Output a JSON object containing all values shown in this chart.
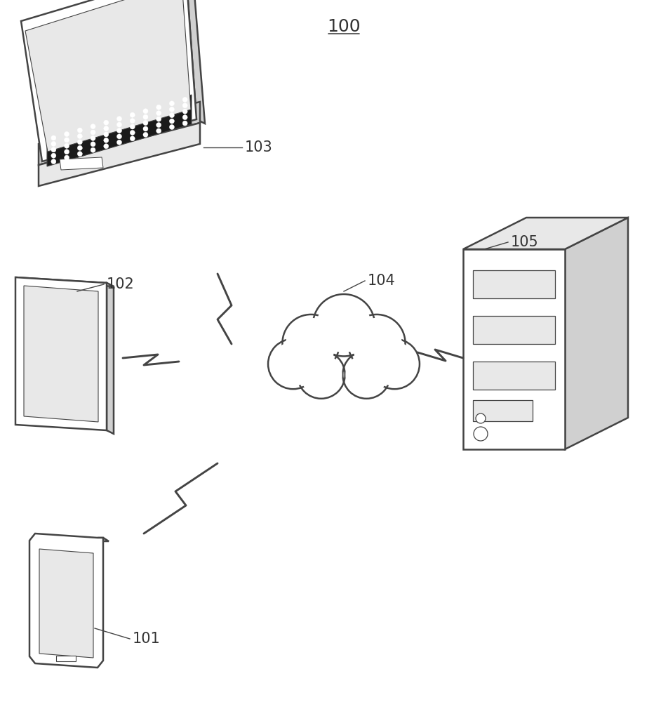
{
  "title": "100",
  "background_color": "#ffffff",
  "line_color": "#444444",
  "line_width": 1.8,
  "label_fontsize": 15,
  "label_color": "#333333",
  "keyboard_color": "#222222",
  "light_gray": "#e8e8e8",
  "mid_gray": "#d0d0d0",
  "dark_gray": "#b0b0b0"
}
